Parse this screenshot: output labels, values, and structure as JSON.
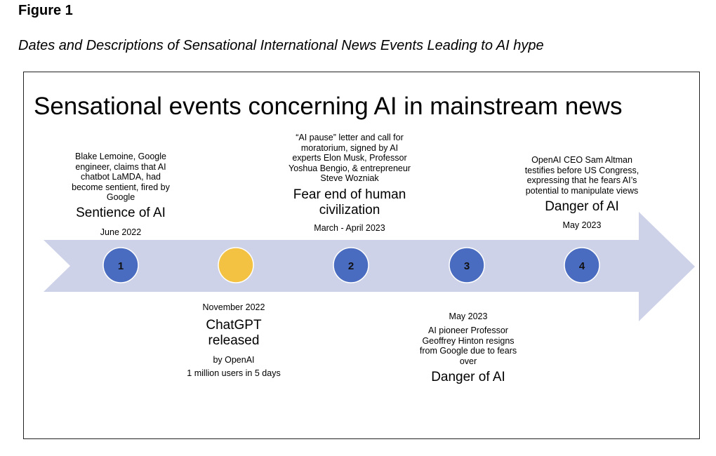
{
  "figure": {
    "label": "Figure 1",
    "caption": "Dates and Descriptions of Sensational International News Events Leading to AI hype"
  },
  "diagram": {
    "title": "Sensational events concerning AI in mainstream news",
    "colors": {
      "arrow": "#cdd2e8",
      "node_blue": "#4a6cc0",
      "node_yellow": "#f4c242",
      "node_stroke": "#ffffff"
    },
    "events": [
      {
        "number": "1",
        "description_lines": [
          "Blake Lemoine, Google",
          "engineer, claims that AI",
          "chatbot LaMDA, had",
          "become sentient, fired by",
          "Google"
        ],
        "headline": "Sentience of AI",
        "date": "June 2022"
      },
      {
        "number": "",
        "date": "November 2022",
        "headline_lines": [
          "ChatGPT",
          "released"
        ],
        "sub_lines": [
          "by OpenAI",
          "1 million users in 5 days"
        ]
      },
      {
        "number": "2",
        "description_lines": [
          "“AI pause” letter and call for",
          "moratorium, signed by AI",
          "experts Elon Musk, Professor",
          "Yoshua Bengio, & entrepreneur",
          "Steve Wozniak"
        ],
        "headline_lines": [
          "Fear end of human",
          "civilization"
        ],
        "date": "March - April  2023"
      },
      {
        "number": "3",
        "date": "May 2023",
        "description_lines": [
          "AI pioneer Professor",
          "Geoffrey Hinton resigns",
          "from Google due to fears",
          "over"
        ],
        "headline": "Danger of AI"
      },
      {
        "number": "4",
        "description_lines": [
          "OpenAI CEO Sam Altman",
          "testifies before US Congress,",
          "expressing that he fears AI’s",
          "potential to manipulate views"
        ],
        "headline": "Danger of AI",
        "date": "May 2023"
      }
    ]
  }
}
